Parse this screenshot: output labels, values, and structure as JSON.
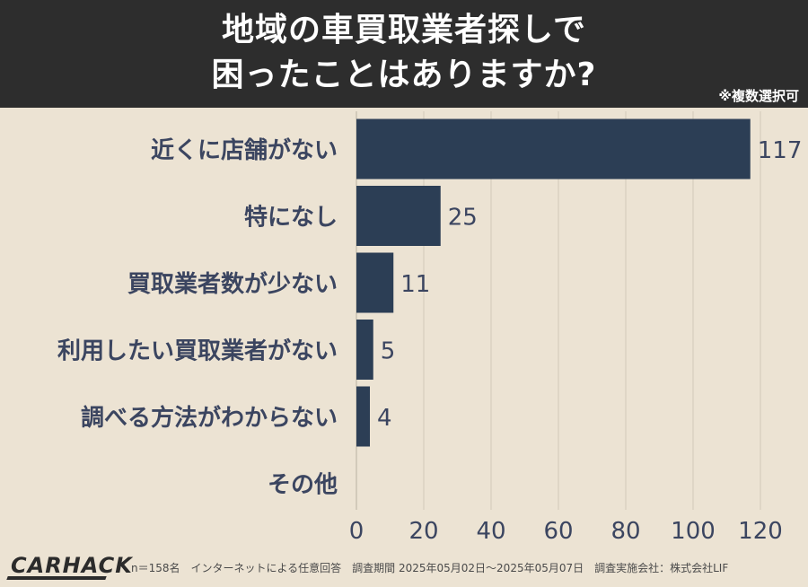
{
  "header": {
    "title_line1": "地域の車買取業者探しで",
    "title_line2": "困ったことはありますか?",
    "note": "※複数選択可"
  },
  "chart_data": {
    "type": "bar",
    "orientation": "horizontal",
    "categories": [
      "近くに店舗がない",
      "特になし",
      "買取業者数が少ない",
      "利用したい買取業者がない",
      "調べる方法がわからない",
      "その他"
    ],
    "values": [
      117,
      25,
      11,
      5,
      4,
      0
    ],
    "data_labels": [
      "117",
      "25",
      "11",
      "5",
      "4",
      ""
    ],
    "xlim": [
      0,
      120
    ],
    "xticks": [
      0,
      20,
      40,
      60,
      80,
      100,
      120
    ],
    "grid": true,
    "bar_color": "#2c3e55",
    "title": "地域の車買取業者探しで困ったことはありますか?"
  },
  "footer": {
    "logo": "CARHACK",
    "note": "n＝158名　インターネットによる任意回答　調査期間 2025年05月02日〜2025年05月07日　調査実施会社：株式会社LIF"
  },
  "colors": {
    "background": "#ece3d3",
    "header_bg": "#2d2d2d",
    "bar": "#2c3e55",
    "label_text": "#3b4560",
    "grid": "#d2c9b8"
  }
}
